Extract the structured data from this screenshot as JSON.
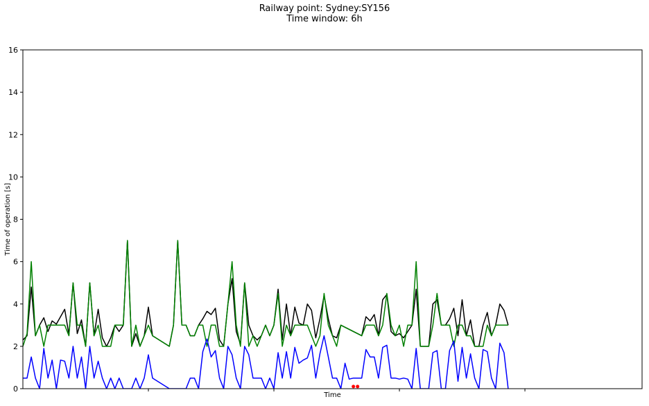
{
  "chart_data": {
    "type": "line",
    "title": "Railway point: Sydney:SY156",
    "subtitle": "Time window: 6h",
    "xlabel": "Time",
    "ylabel": "Time of operation [s]",
    "ylim": [
      0,
      16
    ],
    "yticks": [
      "0",
      "2",
      "4",
      "6",
      "8",
      "10",
      "12",
      "14",
      "16"
    ],
    "xlim": [
      0,
      148
    ],
    "x_major_ticks": [
      30,
      60,
      90,
      120
    ],
    "grid": false,
    "series": [
      {
        "color": "#000000",
        "points": [
          [
            0,
            2.3
          ],
          [
            1,
            2.5
          ],
          [
            2,
            4.8
          ],
          [
            3,
            2.5
          ],
          [
            4,
            3.0
          ],
          [
            5,
            3.35
          ],
          [
            6,
            2.7
          ],
          [
            7,
            3.2
          ],
          [
            8,
            3.05
          ],
          [
            9,
            3.4
          ],
          [
            10,
            3.75
          ],
          [
            11,
            2.55
          ],
          [
            12,
            5.0
          ],
          [
            13,
            2.6
          ],
          [
            14,
            3.25
          ],
          [
            15,
            2.0
          ],
          [
            16,
            5.0
          ],
          [
            17,
            2.5
          ],
          [
            18,
            3.75
          ],
          [
            19,
            2.4
          ],
          [
            20,
            2.0
          ],
          [
            21,
            2.4
          ],
          [
            22,
            3.0
          ],
          [
            23,
            2.7
          ],
          [
            24,
            3.0
          ],
          [
            25,
            7.0
          ],
          [
            26,
            2.0
          ],
          [
            27,
            2.6
          ],
          [
            28,
            2.0
          ],
          [
            29,
            2.5
          ],
          [
            30,
            3.85
          ],
          [
            31,
            2.5
          ],
          [
            35,
            2.0
          ],
          [
            36,
            3.0
          ],
          [
            37,
            7.0
          ],
          [
            38,
            3.0
          ],
          [
            39,
            3.0
          ],
          [
            40,
            2.5
          ],
          [
            41,
            2.5
          ],
          [
            42,
            3.0
          ],
          [
            43,
            3.3
          ],
          [
            44,
            3.65
          ],
          [
            45,
            3.5
          ],
          [
            46,
            3.8
          ],
          [
            47,
            2.3
          ],
          [
            48,
            2.0
          ],
          [
            49,
            4.0
          ],
          [
            50,
            5.2
          ],
          [
            51,
            2.7
          ],
          [
            52,
            2.1
          ],
          [
            53,
            5.0
          ],
          [
            54,
            3.0
          ],
          [
            55,
            2.5
          ],
          [
            56,
            2.3
          ],
          [
            57,
            2.5
          ],
          [
            58,
            3.0
          ],
          [
            59,
            2.5
          ],
          [
            60,
            3.0
          ],
          [
            61,
            4.7
          ],
          [
            62,
            2.3
          ],
          [
            63,
            4.0
          ],
          [
            64,
            2.5
          ],
          [
            65,
            3.85
          ],
          [
            66,
            3.1
          ],
          [
            67,
            3.0
          ],
          [
            68,
            4.0
          ],
          [
            69,
            3.7
          ],
          [
            70,
            2.4
          ],
          [
            71,
            3.3
          ],
          [
            72,
            4.4
          ],
          [
            73,
            3.3
          ],
          [
            74,
            2.5
          ],
          [
            75,
            2.4
          ],
          [
            76,
            3.0
          ],
          [
            81,
            2.5
          ],
          [
            82,
            3.4
          ],
          [
            83,
            3.2
          ],
          [
            84,
            3.5
          ],
          [
            85,
            2.5
          ],
          [
            86,
            4.2
          ],
          [
            87,
            4.45
          ],
          [
            88,
            2.7
          ],
          [
            89,
            2.5
          ],
          [
            90,
            2.6
          ],
          [
            91,
            2.4
          ],
          [
            92,
            2.7
          ],
          [
            93,
            3.0
          ],
          [
            94,
            4.7
          ],
          [
            95,
            2.0
          ],
          [
            96,
            2.0
          ],
          [
            97,
            2.0
          ],
          [
            98,
            4.0
          ],
          [
            99,
            4.2
          ],
          [
            100,
            3.0
          ],
          [
            101,
            3.0
          ],
          [
            102,
            3.3
          ],
          [
            103,
            3.8
          ],
          [
            104,
            2.5
          ],
          [
            105,
            4.2
          ],
          [
            106,
            2.5
          ],
          [
            107,
            3.25
          ],
          [
            108,
            2.0
          ],
          [
            109,
            2.0
          ],
          [
            110,
            3.0
          ],
          [
            111,
            3.6
          ],
          [
            112,
            2.5
          ],
          [
            113,
            3.0
          ],
          [
            114,
            4.0
          ],
          [
            115,
            3.7
          ],
          [
            116,
            3.0
          ]
        ]
      },
      {
        "color": "#008000",
        "points": [
          [
            0,
            2.0
          ],
          [
            1,
            2.6
          ],
          [
            2,
            6.0
          ],
          [
            3,
            2.5
          ],
          [
            4,
            3.0
          ],
          [
            5,
            2.0
          ],
          [
            6,
            3.0
          ],
          [
            7,
            3.0
          ],
          [
            8,
            3.0
          ],
          [
            9,
            3.0
          ],
          [
            10,
            3.0
          ],
          [
            11,
            2.5
          ],
          [
            12,
            5.0
          ],
          [
            13,
            3.0
          ],
          [
            14,
            3.0
          ],
          [
            15,
            2.0
          ],
          [
            16,
            5.0
          ],
          [
            17,
            2.5
          ],
          [
            18,
            3.0
          ],
          [
            19,
            2.0
          ],
          [
            20,
            2.0
          ],
          [
            21,
            2.0
          ],
          [
            22,
            3.0
          ],
          [
            23,
            3.0
          ],
          [
            24,
            3.0
          ],
          [
            25,
            7.0
          ],
          [
            26,
            2.0
          ],
          [
            27,
            3.0
          ],
          [
            28,
            2.0
          ],
          [
            29,
            2.5
          ],
          [
            30,
            3.0
          ],
          [
            31,
            2.5
          ],
          [
            35,
            2.0
          ],
          [
            36,
            3.0
          ],
          [
            37,
            7.0
          ],
          [
            38,
            3.0
          ],
          [
            39,
            3.0
          ],
          [
            40,
            2.5
          ],
          [
            41,
            2.5
          ],
          [
            42,
            3.0
          ],
          [
            43,
            3.0
          ],
          [
            44,
            2.0
          ],
          [
            45,
            3.0
          ],
          [
            46,
            3.0
          ],
          [
            47,
            2.0
          ],
          [
            48,
            2.0
          ],
          [
            49,
            4.0
          ],
          [
            50,
            6.0
          ],
          [
            51,
            3.0
          ],
          [
            52,
            2.0
          ],
          [
            53,
            5.0
          ],
          [
            54,
            2.0
          ],
          [
            55,
            2.5
          ],
          [
            56,
            2.0
          ],
          [
            57,
            2.5
          ],
          [
            58,
            3.0
          ],
          [
            59,
            2.5
          ],
          [
            60,
            3.0
          ],
          [
            61,
            4.5
          ],
          [
            62,
            2.0
          ],
          [
            63,
            3.0
          ],
          [
            64,
            2.5
          ],
          [
            65,
            3.0
          ],
          [
            66,
            3.0
          ],
          [
            67,
            3.0
          ],
          [
            68,
            3.0
          ],
          [
            69,
            2.5
          ],
          [
            70,
            2.0
          ],
          [
            71,
            2.5
          ],
          [
            72,
            4.5
          ],
          [
            73,
            3.0
          ],
          [
            74,
            2.5
          ],
          [
            75,
            2.0
          ],
          [
            76,
            3.0
          ],
          [
            81,
            2.5
          ],
          [
            82,
            3.0
          ],
          [
            83,
            3.0
          ],
          [
            84,
            3.0
          ],
          [
            85,
            2.5
          ],
          [
            86,
            3.0
          ],
          [
            87,
            4.5
          ],
          [
            88,
            3.0
          ],
          [
            89,
            2.5
          ],
          [
            90,
            3.0
          ],
          [
            91,
            2.0
          ],
          [
            92,
            3.0
          ],
          [
            93,
            3.0
          ],
          [
            94,
            6.0
          ],
          [
            95,
            2.0
          ],
          [
            96,
            2.0
          ],
          [
            97,
            2.0
          ],
          [
            98,
            3.0
          ],
          [
            99,
            4.5
          ],
          [
            100,
            3.0
          ],
          [
            101,
            3.0
          ],
          [
            102,
            3.0
          ],
          [
            103,
            2.0
          ],
          [
            104,
            3.0
          ],
          [
            105,
            3.0
          ],
          [
            106,
            2.5
          ],
          [
            107,
            2.5
          ],
          [
            108,
            2.0
          ],
          [
            109,
            2.0
          ],
          [
            110,
            2.0
          ],
          [
            111,
            3.0
          ],
          [
            112,
            2.5
          ],
          [
            113,
            3.0
          ],
          [
            114,
            3.0
          ],
          [
            115,
            3.0
          ],
          [
            116,
            3.0
          ]
        ]
      },
      {
        "color": "#0000ff",
        "points": [
          [
            0,
            0.5
          ],
          [
            1,
            0.5
          ],
          [
            2,
            1.5
          ],
          [
            3,
            0.5
          ],
          [
            4,
            0.0
          ],
          [
            5,
            1.9
          ],
          [
            6,
            0.5
          ],
          [
            7,
            1.35
          ],
          [
            8,
            0.0
          ],
          [
            9,
            1.35
          ],
          [
            10,
            1.3
          ],
          [
            11,
            0.5
          ],
          [
            12,
            2.0
          ],
          [
            13,
            0.5
          ],
          [
            14,
            1.5
          ],
          [
            15,
            0.0
          ],
          [
            16,
            2.0
          ],
          [
            17,
            0.5
          ],
          [
            18,
            1.3
          ],
          [
            19,
            0.5
          ],
          [
            20,
            0.0
          ],
          [
            21,
            0.5
          ],
          [
            22,
            0.0
          ],
          [
            23,
            0.5
          ],
          [
            24,
            0.0
          ],
          [
            25,
            0.0
          ],
          [
            26,
            0.0
          ],
          [
            27,
            0.5
          ],
          [
            28,
            0.0
          ],
          [
            29,
            0.5
          ],
          [
            30,
            1.6
          ],
          [
            31,
            0.5
          ],
          [
            35,
            0.0
          ],
          [
            36,
            0.0
          ],
          [
            37,
            0.0
          ],
          [
            38,
            0.0
          ],
          [
            39,
            0.0
          ],
          [
            40,
            0.5
          ],
          [
            41,
            0.5
          ],
          [
            42,
            0.0
          ],
          [
            43,
            1.75
          ],
          [
            44,
            2.35
          ],
          [
            45,
            1.5
          ],
          [
            46,
            1.8
          ],
          [
            47,
            0.5
          ],
          [
            48,
            0.0
          ],
          [
            49,
            2.0
          ],
          [
            50,
            1.6
          ],
          [
            51,
            0.5
          ],
          [
            52,
            0.0
          ],
          [
            53,
            2.0
          ],
          [
            54,
            1.6
          ],
          [
            55,
            0.5
          ],
          [
            56,
            0.5
          ],
          [
            57,
            0.5
          ],
          [
            58,
            0.0
          ],
          [
            59,
            0.5
          ],
          [
            60,
            0.0
          ],
          [
            61,
            1.7
          ],
          [
            62,
            0.5
          ],
          [
            63,
            1.75
          ],
          [
            64,
            0.5
          ],
          [
            65,
            1.95
          ],
          [
            66,
            1.2
          ],
          [
            67,
            1.35
          ],
          [
            68,
            1.45
          ],
          [
            69,
            2.05
          ],
          [
            70,
            0.5
          ],
          [
            71,
            1.65
          ],
          [
            72,
            2.5
          ],
          [
            73,
            1.5
          ],
          [
            74,
            0.5
          ],
          [
            75,
            0.5
          ],
          [
            76,
            0.0
          ],
          [
            77,
            1.2
          ],
          [
            78,
            0.45
          ],
          [
            79,
            0.5
          ],
          [
            81,
            0.5
          ],
          [
            82,
            1.85
          ],
          [
            83,
            1.5
          ],
          [
            84,
            1.5
          ],
          [
            85,
            0.5
          ],
          [
            86,
            1.95
          ],
          [
            87,
            2.05
          ],
          [
            88,
            0.5
          ],
          [
            89,
            0.5
          ],
          [
            90,
            0.45
          ],
          [
            91,
            0.5
          ],
          [
            92,
            0.45
          ],
          [
            93,
            0.0
          ],
          [
            94,
            1.9
          ],
          [
            95,
            0.0
          ],
          [
            96,
            0.0
          ],
          [
            97,
            0.0
          ],
          [
            98,
            1.7
          ],
          [
            99,
            1.8
          ],
          [
            100,
            0.0
          ],
          [
            101,
            0.0
          ],
          [
            102,
            1.8
          ],
          [
            103,
            2.25
          ],
          [
            104,
            0.35
          ],
          [
            105,
            1.95
          ],
          [
            106,
            0.5
          ],
          [
            107,
            1.65
          ],
          [
            108,
            0.5
          ],
          [
            109,
            0.0
          ],
          [
            110,
            1.85
          ],
          [
            111,
            1.75
          ],
          [
            112,
            0.5
          ],
          [
            113,
            0.0
          ],
          [
            114,
            2.15
          ],
          [
            115,
            1.7
          ],
          [
            116,
            0.0
          ]
        ]
      }
    ],
    "markers": {
      "color": "#ff0000",
      "points": [
        [
          79,
          0.1
        ],
        [
          80,
          0.1
        ]
      ]
    }
  }
}
